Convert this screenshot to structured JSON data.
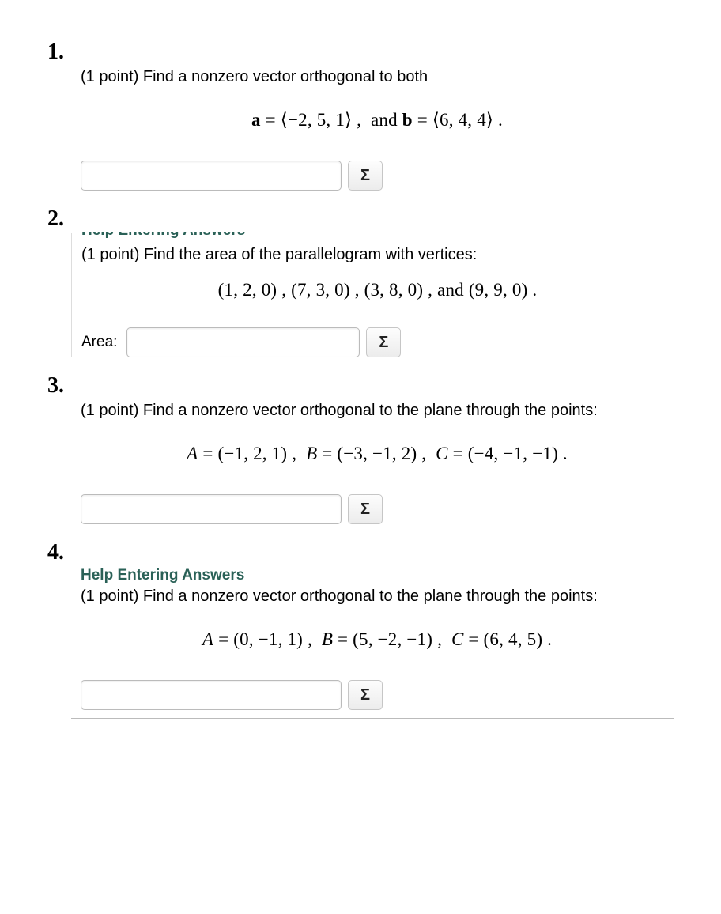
{
  "sigma_label": "Σ",
  "help_text": "Help Entering Answers",
  "problems": [
    {
      "number": "1.",
      "prompt": "(1 point) Find a nonzero vector orthogonal to both",
      "equation_html": "<b>a</b> = ⟨−2, 5, 1⟩ ,&nbsp;&nbsp;and <b>b</b> = ⟨6, 4, 4⟩ ."
    },
    {
      "number": "2.",
      "prompt": "(1 point) Find the area of the parallelogram with vertices:",
      "equation_html": "(1, 2, 0) , (7, 3, 0) , (3, 8, 0) , and (9, 9, 0) .",
      "area_label": "Area:"
    },
    {
      "number": "3.",
      "prompt": "(1 point) Find a nonzero vector orthogonal to the plane through the points:",
      "equation_html": "<i>A</i> = (−1, 2, 1) ,&nbsp;&nbsp;<i>B</i> = (−3, −1, 2) ,&nbsp;&nbsp;<i>C</i> = (−4, −1, −1) ."
    },
    {
      "number": "4.",
      "prompt": "(1 point) Find a nonzero vector orthogonal to the plane through the points:",
      "equation_html": "<i>A</i> = (0, −1, 1) ,&nbsp;&nbsp;<i>B</i> = (5, −2, −1) ,&nbsp;&nbsp;<i>C</i> = (6, 4, 5) ."
    }
  ],
  "colors": {
    "help_link": "#2a6157",
    "text": "#000000",
    "bg": "#ffffff"
  },
  "fonts": {
    "body": "Arial",
    "math": "Times New Roman",
    "body_size": 20,
    "math_size": 23,
    "number_size": 28
  }
}
